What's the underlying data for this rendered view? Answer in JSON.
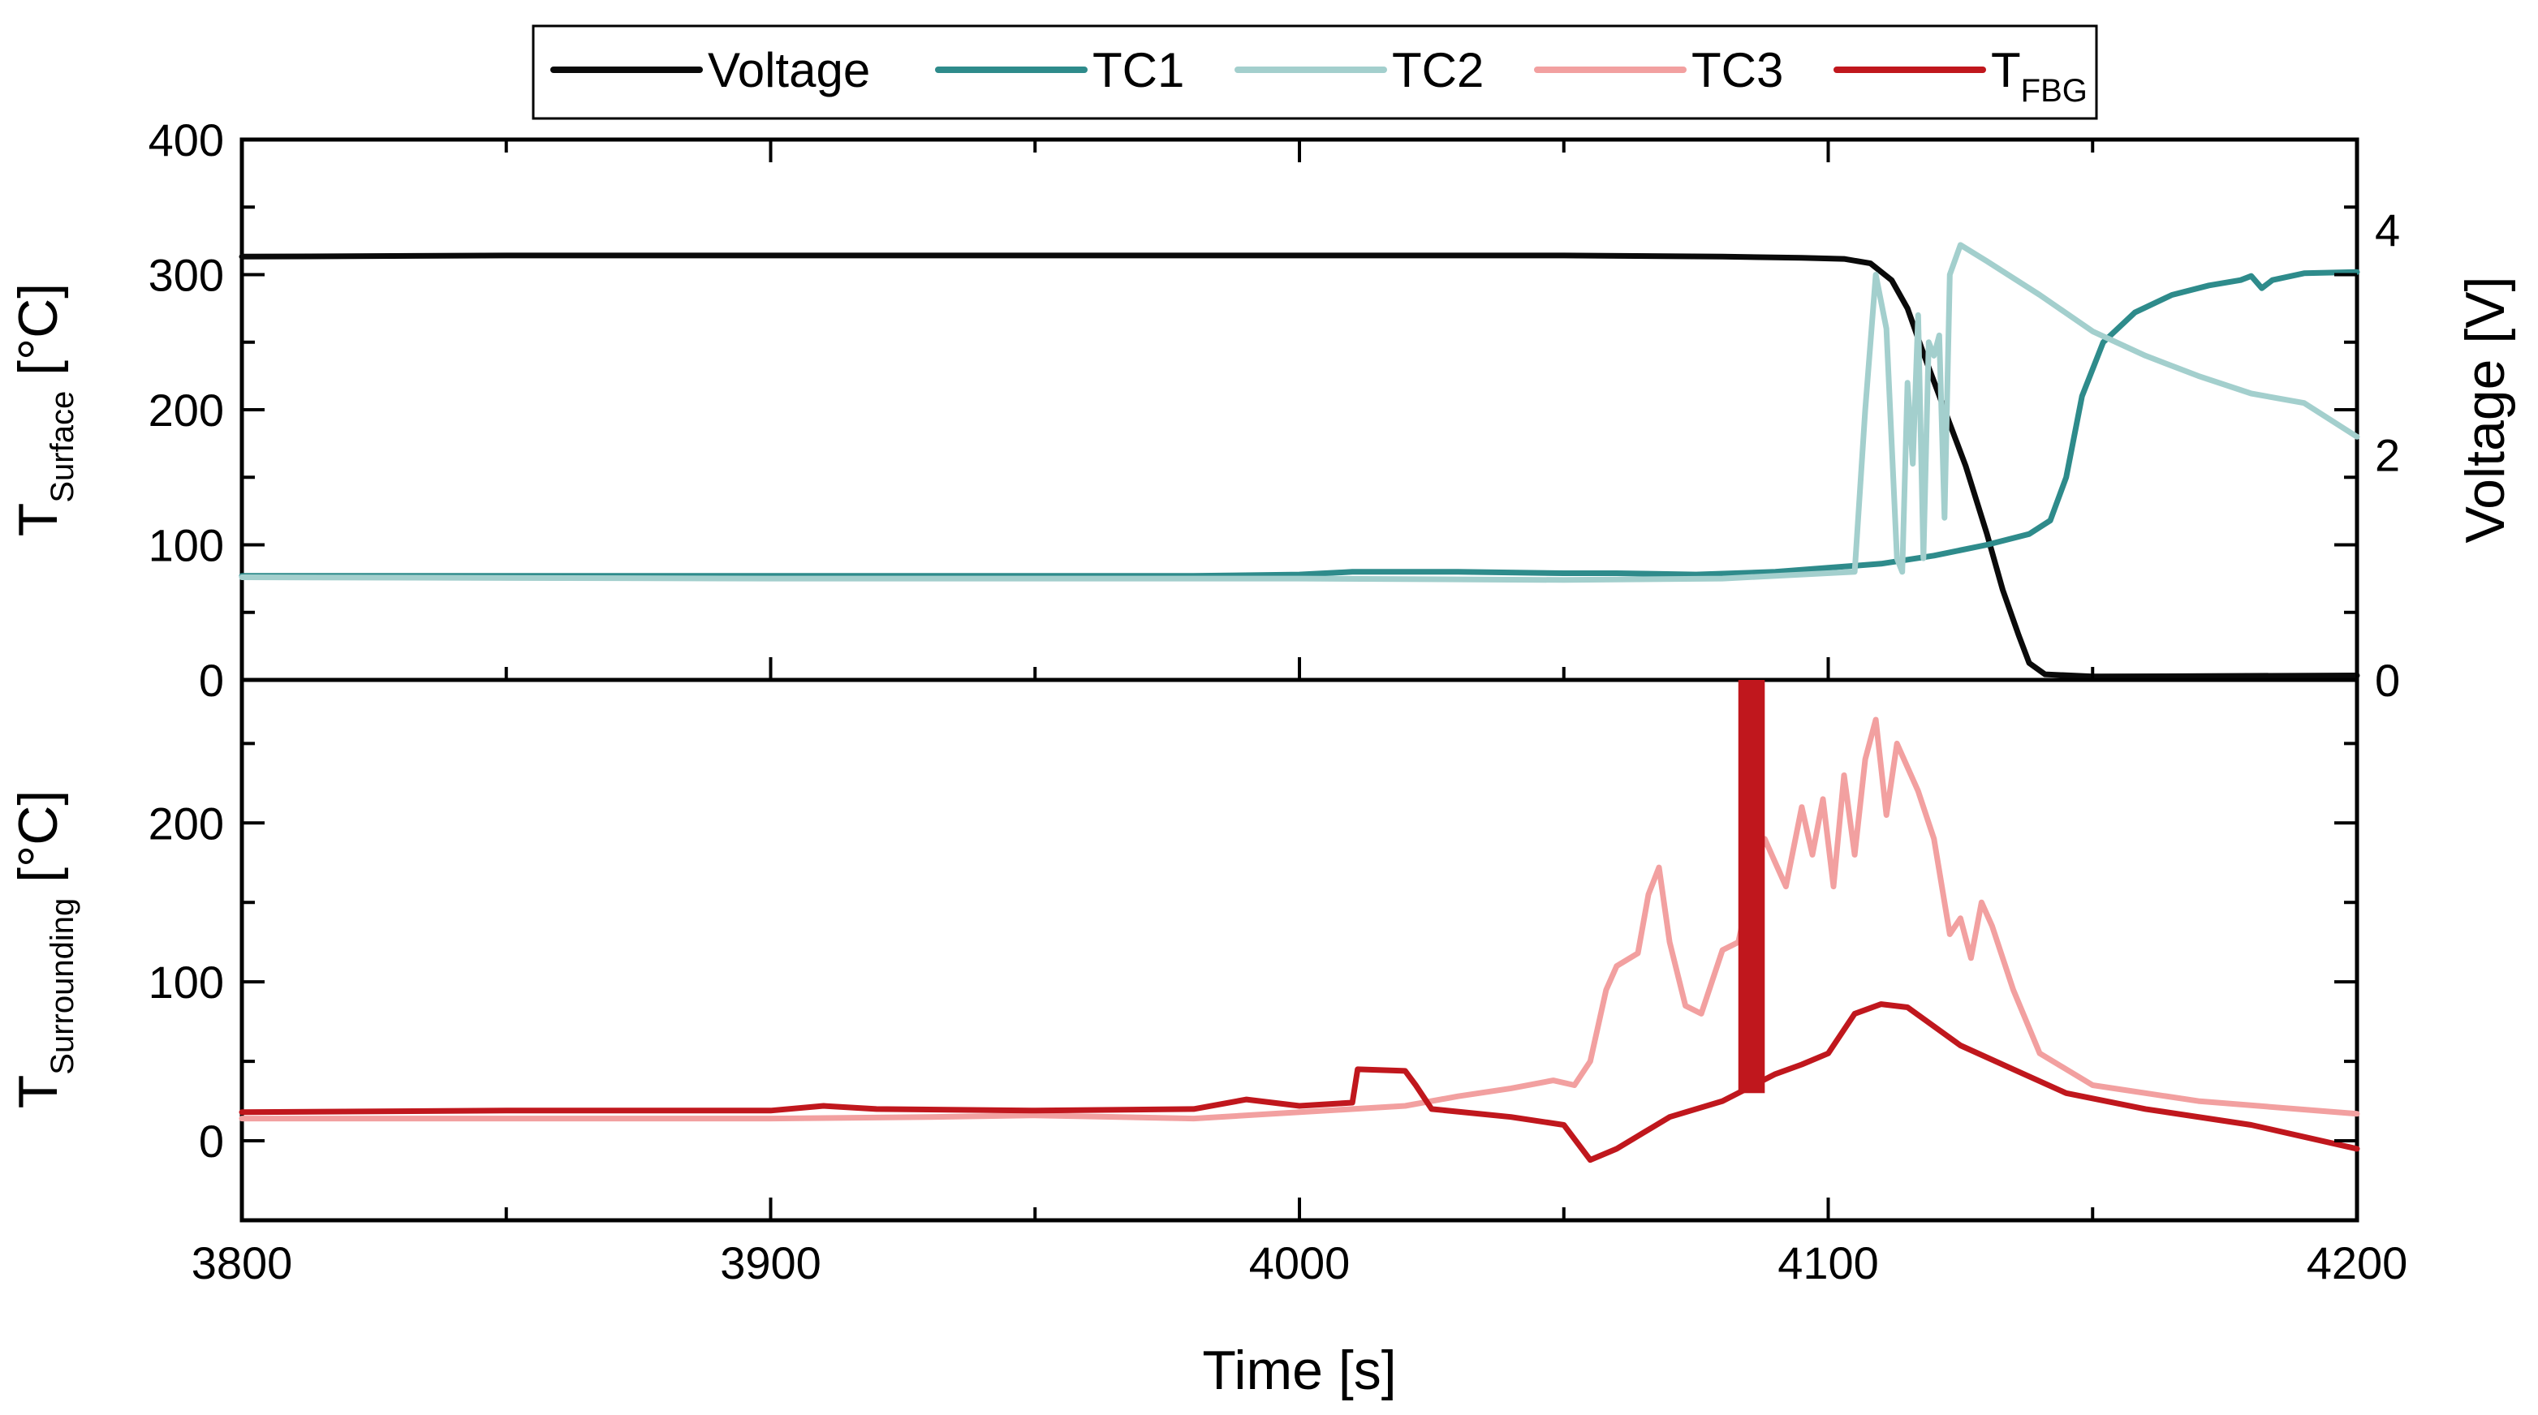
{
  "chart_data": {
    "type": "line",
    "x_axis": {
      "label": "Time [s]",
      "range": [
        3800,
        4200
      ],
      "ticks": [
        3800,
        3900,
        4000,
        4100,
        4200
      ],
      "minor_step": 50
    },
    "legend": {
      "placement": "top-center",
      "entries": [
        {
          "series": "voltage",
          "label": "Voltage",
          "subscript": ""
        },
        {
          "series": "tc1",
          "label": "TC1",
          "subscript": ""
        },
        {
          "series": "tc2",
          "label": "TC2",
          "subscript": ""
        },
        {
          "series": "tc3",
          "label": "TC3",
          "subscript": ""
        },
        {
          "series": "tfbg",
          "label": "T",
          "subscript": "FBG"
        }
      ]
    },
    "panels": [
      {
        "id": "top",
        "y_axis": {
          "label_main": "T",
          "label_sub": "Surface",
          "label_unit": " [°C]",
          "range": [
            0,
            400
          ],
          "ticks": [
            0,
            100,
            200,
            300,
            400
          ],
          "minor_step": 50
        },
        "y2_axis": {
          "label": "Voltage [V]",
          "range": [
            0,
            4.8
          ],
          "ticks": [
            0,
            2,
            4
          ],
          "minor_step": 1
        }
      },
      {
        "id": "bottom",
        "y_axis": {
          "label_main": "T",
          "label_sub": "Surrounding",
          "label_unit": " [°C]",
          "range": [
            -50,
            290
          ],
          "ticks": [
            0,
            100,
            200
          ],
          "minor_step": 50
        }
      }
    ],
    "series": [
      {
        "key": "voltage",
        "name": "Voltage",
        "color": "#0a0a0a",
        "panel": "top",
        "axis": "y2",
        "points": [
          [
            3800,
            3.76
          ],
          [
            3850,
            3.77
          ],
          [
            3900,
            3.77
          ],
          [
            3950,
            3.77
          ],
          [
            4000,
            3.77
          ],
          [
            4050,
            3.77
          ],
          [
            4080,
            3.76
          ],
          [
            4095,
            3.75
          ],
          [
            4103,
            3.74
          ],
          [
            4108,
            3.7
          ],
          [
            4112,
            3.55
          ],
          [
            4115,
            3.3
          ],
          [
            4118,
            2.9
          ],
          [
            4122,
            2.4
          ],
          [
            4126,
            1.9
          ],
          [
            4130,
            1.3
          ],
          [
            4133,
            0.8
          ],
          [
            4136,
            0.4
          ],
          [
            4138,
            0.15
          ],
          [
            4141,
            0.05
          ],
          [
            4150,
            0.03
          ],
          [
            4200,
            0.04
          ]
        ]
      },
      {
        "key": "tc1",
        "name": "TC1",
        "color": "#2e8b8b",
        "panel": "top",
        "axis": "y",
        "points": [
          [
            3800,
            77
          ],
          [
            3900,
            77
          ],
          [
            3980,
            77
          ],
          [
            4000,
            78
          ],
          [
            4010,
            80
          ],
          [
            4030,
            80
          ],
          [
            4050,
            79
          ],
          [
            4060,
            79
          ],
          [
            4075,
            78
          ],
          [
            4090,
            80
          ],
          [
            4100,
            83
          ],
          [
            4110,
            86
          ],
          [
            4120,
            92
          ],
          [
            4130,
            100
          ],
          [
            4138,
            108
          ],
          [
            4142,
            118
          ],
          [
            4145,
            150
          ],
          [
            4148,
            210
          ],
          [
            4152,
            250
          ],
          [
            4158,
            272
          ],
          [
            4165,
            285
          ],
          [
            4172,
            292
          ],
          [
            4178,
            296
          ],
          [
            4180,
            299
          ],
          [
            4182,
            290
          ],
          [
            4184,
            296
          ],
          [
            4190,
            301
          ],
          [
            4200,
            302
          ]
        ]
      },
      {
        "key": "tc2",
        "name": "TC2",
        "color": "#a3cfcd",
        "panel": "top",
        "axis": "y",
        "points": [
          [
            3800,
            76
          ],
          [
            3900,
            75
          ],
          [
            4000,
            75
          ],
          [
            4050,
            74
          ],
          [
            4080,
            75
          ],
          [
            4095,
            78
          ],
          [
            4105,
            80
          ],
          [
            4107,
            200
          ],
          [
            4109,
            300
          ],
          [
            4111,
            260
          ],
          [
            4113,
            90
          ],
          [
            4114,
            80
          ],
          [
            4115,
            220
          ],
          [
            4116,
            160
          ],
          [
            4117,
            270
          ],
          [
            4118,
            90
          ],
          [
            4119,
            250
          ],
          [
            4120,
            240
          ],
          [
            4121,
            255
          ],
          [
            4122,
            120
          ],
          [
            4123,
            300
          ],
          [
            4125,
            322
          ],
          [
            4130,
            310
          ],
          [
            4140,
            285
          ],
          [
            4150,
            258
          ],
          [
            4160,
            240
          ],
          [
            4170,
            225
          ],
          [
            4180,
            212
          ],
          [
            4190,
            205
          ],
          [
            4200,
            180
          ]
        ]
      },
      {
        "key": "tc3",
        "name": "TC3",
        "color": "#f2a0a0",
        "panel": "bottom",
        "axis": "y",
        "points": [
          [
            3800,
            14
          ],
          [
            3900,
            14
          ],
          [
            3930,
            15
          ],
          [
            3950,
            16
          ],
          [
            3980,
            14
          ],
          [
            4000,
            18
          ],
          [
            4020,
            22
          ],
          [
            4030,
            28
          ],
          [
            4040,
            33
          ],
          [
            4048,
            38
          ],
          [
            4052,
            35
          ],
          [
            4055,
            50
          ],
          [
            4058,
            95
          ],
          [
            4060,
            110
          ],
          [
            4064,
            118
          ],
          [
            4066,
            155
          ],
          [
            4068,
            172
          ],
          [
            4070,
            125
          ],
          [
            4073,
            85
          ],
          [
            4076,
            80
          ],
          [
            4080,
            120
          ],
          [
            4083,
            125
          ],
          [
            4086,
            170
          ],
          [
            4088,
            190
          ],
          [
            4090,
            175
          ],
          [
            4092,
            160
          ],
          [
            4095,
            210
          ],
          [
            4097,
            180
          ],
          [
            4099,
            215
          ],
          [
            4101,
            160
          ],
          [
            4103,
            230
          ],
          [
            4105,
            180
          ],
          [
            4107,
            240
          ],
          [
            4109,
            265
          ],
          [
            4111,
            205
          ],
          [
            4113,
            250
          ],
          [
            4115,
            235
          ],
          [
            4117,
            220
          ],
          [
            4120,
            190
          ],
          [
            4123,
            130
          ],
          [
            4125,
            140
          ],
          [
            4127,
            115
          ],
          [
            4129,
            150
          ],
          [
            4131,
            135
          ],
          [
            4135,
            95
          ],
          [
            4140,
            55
          ],
          [
            4150,
            35
          ],
          [
            4170,
            25
          ],
          [
            4200,
            17
          ]
        ]
      },
      {
        "key": "tfbg",
        "name": "T_FBG",
        "color": "#c0171d",
        "panel": "bottom",
        "axis": "y",
        "points": [
          [
            3800,
            18
          ],
          [
            3850,
            19
          ],
          [
            3900,
            19
          ],
          [
            3910,
            22
          ],
          [
            3920,
            20
          ],
          [
            3950,
            19
          ],
          [
            3980,
            20
          ],
          [
            3990,
            26
          ],
          [
            4000,
            22
          ],
          [
            4010,
            24
          ],
          [
            4011,
            45
          ],
          [
            4020,
            44
          ],
          [
            4022,
            35
          ],
          [
            4025,
            20
          ],
          [
            4040,
            15
          ],
          [
            4050,
            10
          ],
          [
            4055,
            -12
          ],
          [
            4060,
            -5
          ],
          [
            4065,
            5
          ],
          [
            4070,
            15
          ],
          [
            4080,
            25
          ],
          [
            4090,
            42
          ],
          [
            4095,
            48
          ],
          [
            4100,
            55
          ],
          [
            4105,
            80
          ],
          [
            4110,
            86
          ],
          [
            4115,
            84
          ],
          [
            4125,
            60
          ],
          [
            4135,
            45
          ],
          [
            4145,
            30
          ],
          [
            4160,
            20
          ],
          [
            4180,
            10
          ],
          [
            4200,
            -5
          ]
        ]
      }
    ],
    "tfbg_gap_band": {
      "x_start": 4083,
      "x_end": 4088,
      "color": "#c0171d"
    }
  }
}
